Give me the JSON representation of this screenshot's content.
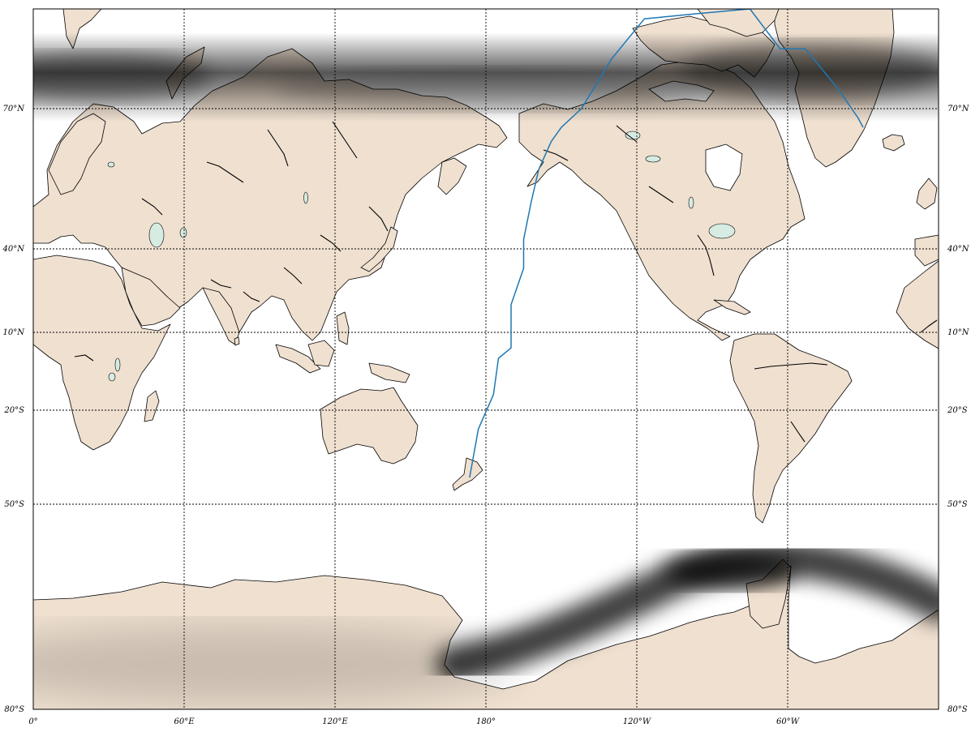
{
  "map": {
    "lat_labels": [
      {
        "lat": 70,
        "text": "70°N"
      },
      {
        "lat": 40,
        "text": "40°N"
      },
      {
        "lat": 10,
        "text": "10°N"
      },
      {
        "lat": -20,
        "text": "20°S"
      },
      {
        "lat": -50,
        "text": "50°S"
      },
      {
        "lat": -80,
        "text": "80°S"
      }
    ],
    "lon_labels": [
      {
        "lon": 0,
        "text": "0°"
      },
      {
        "lon": 60,
        "text": "60°E"
      },
      {
        "lon": 120,
        "text": "120°E"
      },
      {
        "lon": 180,
        "text": "180°"
      },
      {
        "lon": 240,
        "text": "120°W"
      },
      {
        "lon": 300,
        "text": "60°W"
      }
    ],
    "colors": {
      "land": "#efe0d0",
      "lake": "#d6ebe1",
      "route": "#1f77b4",
      "shading": "#000000"
    },
    "shading": "grayscale density bands near 80°N and 65°S",
    "route_path_lonlat": [
      [
        173.5,
        -41.5
      ],
      [
        177,
        -26
      ],
      [
        183,
        -14
      ],
      [
        185,
        0
      ],
      [
        190,
        4
      ],
      [
        190,
        20
      ],
      [
        195,
        33
      ],
      [
        195,
        42
      ],
      [
        198,
        50
      ],
      [
        201,
        57
      ],
      [
        206,
        63
      ],
      [
        210,
        66
      ],
      [
        218,
        70
      ],
      [
        230,
        75
      ],
      [
        243,
        79
      ],
      [
        263,
        79.5
      ],
      [
        285,
        81
      ],
      [
        297,
        76
      ],
      [
        307,
        76
      ],
      [
        320,
        72
      ],
      [
        328,
        68
      ],
      [
        330,
        66
      ]
    ]
  }
}
